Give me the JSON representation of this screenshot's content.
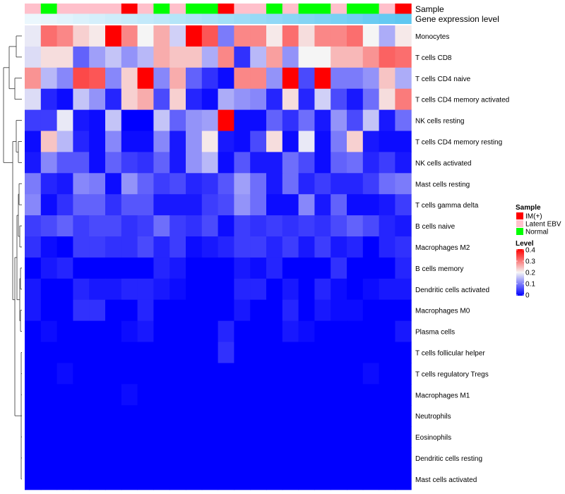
{
  "chart_data": {
    "type": "heatmap",
    "annotation_tracks": [
      "Sample",
      "Gene expression level"
    ],
    "sample_track": [
      "Latent EBV",
      "Normal",
      "Latent EBV",
      "Latent EBV",
      "Latent EBV",
      "Latent EBV",
      "IM(+)",
      "Latent EBV",
      "Normal",
      "Latent EBV",
      "Normal",
      "Normal",
      "IM(+)",
      "Latent EBV",
      "Latent EBV",
      "Normal",
      "Latent EBV",
      "Normal",
      "Normal",
      "Latent EBV",
      "Normal",
      "Normal",
      "Latent EBV",
      "IM(+)"
    ],
    "expression_track": [
      0.02,
      0.05,
      0.09,
      0.13,
      0.17,
      0.21,
      0.25,
      0.29,
      0.33,
      0.38,
      0.42,
      0.46,
      0.5,
      0.54,
      0.58,
      0.62,
      0.67,
      0.71,
      0.75,
      0.79,
      0.83,
      0.88,
      0.92,
      0.96
    ],
    "expression_track_colors": [
      "#eef8fd",
      "#58c5f1"
    ],
    "rows": [
      "Monocytes",
      "T cells CD8",
      "T cells CD4 naive",
      "T cells CD4 memory activated",
      "NK cells resting",
      "T cells CD4 memory resting",
      "NK cells activated",
      "Mast cells resting",
      "T cells gamma delta",
      "B cells naive",
      "Macrophages M2",
      "B cells memory",
      "Dendritic cells activated",
      "Macrophages M0",
      "Plasma cells",
      "T cells follicular helper",
      "T cells regulatory  Tregs",
      "Macrophages M1",
      "Neutrophils",
      "Eosinophils",
      "Dendritic cells resting",
      "Mast cells activated"
    ],
    "values": [
      [
        0.19,
        0.31,
        0.29,
        0.23,
        0.21,
        0.4,
        0.29,
        0.2,
        0.26,
        0.17,
        0.4,
        0.33,
        0.1,
        0.29,
        0.29,
        0.21,
        0.31,
        0.22,
        0.29,
        0.29,
        0.31,
        0.2,
        0.14,
        0.21
      ],
      [
        0.18,
        0.22,
        0.22,
        0.08,
        0.13,
        0.16,
        0.12,
        0.15,
        0.26,
        0.24,
        0.24,
        0.14,
        0.29,
        0.04,
        0.15,
        0.27,
        0.12,
        0.2,
        0.2,
        0.25,
        0.25,
        0.28,
        0.32,
        0.31
      ],
      [
        0.28,
        0.15,
        0.11,
        0.34,
        0.33,
        0.11,
        0.23,
        0.4,
        0.11,
        0.26,
        0.08,
        0.04,
        0.01,
        0.29,
        0.29,
        0.12,
        0.4,
        0.06,
        0.4,
        0.1,
        0.1,
        0.12,
        0.24,
        0.14
      ],
      [
        0.18,
        0.03,
        0.01,
        0.16,
        0.12,
        0.03,
        0.23,
        0.26,
        0.06,
        0.23,
        0.03,
        0.01,
        0.14,
        0.12,
        0.11,
        0.03,
        0.22,
        0.03,
        0.17,
        0.06,
        0.02,
        0.09,
        0.22,
        0.3
      ],
      [
        0.05,
        0.05,
        0.19,
        0.02,
        0.01,
        0.16,
        0.0,
        0.0,
        0.16,
        0.08,
        0.12,
        0.13,
        0.4,
        0.01,
        0.01,
        0.08,
        0.04,
        0.09,
        0.02,
        0.12,
        0.06,
        0.16,
        0.02,
        0.09
      ],
      [
        0.01,
        0.24,
        0.15,
        0.03,
        0.01,
        0.11,
        0.01,
        0.01,
        0.11,
        0.02,
        0.12,
        0.21,
        0.02,
        0.01,
        0.06,
        0.22,
        0.01,
        0.19,
        0.01,
        0.1,
        0.23,
        0.02,
        0.01,
        0.01
      ],
      [
        0.02,
        0.11,
        0.07,
        0.07,
        0.01,
        0.08,
        0.05,
        0.04,
        0.08,
        0.02,
        0.12,
        0.15,
        0.01,
        0.07,
        0.02,
        0.02,
        0.09,
        0.06,
        0.01,
        0.08,
        0.09,
        0.03,
        0.05,
        0.02
      ],
      [
        0.1,
        0.03,
        0.02,
        0.11,
        0.1,
        0.01,
        0.12,
        0.08,
        0.05,
        0.06,
        0.03,
        0.04,
        0.07,
        0.13,
        0.09,
        0.02,
        0.09,
        0.03,
        0.05,
        0.03,
        0.03,
        0.05,
        0.09,
        0.1
      ],
      [
        0.11,
        0.01,
        0.04,
        0.08,
        0.08,
        0.04,
        0.07,
        0.07,
        0.02,
        0.02,
        0.02,
        0.05,
        0.06,
        0.12,
        0.09,
        0.01,
        0.01,
        0.11,
        0.02,
        0.08,
        0.01,
        0.01,
        0.02,
        0.05
      ],
      [
        0.05,
        0.06,
        0.08,
        0.05,
        0.06,
        0.06,
        0.04,
        0.05,
        0.09,
        0.05,
        0.04,
        0.06,
        0.01,
        0.05,
        0.04,
        0.05,
        0.04,
        0.05,
        0.04,
        0.06,
        0.08,
        0.06,
        0.03,
        0.02
      ],
      [
        0.04,
        0.01,
        0.0,
        0.05,
        0.05,
        0.04,
        0.04,
        0.06,
        0.03,
        0.05,
        0.01,
        0.02,
        0.03,
        0.05,
        0.05,
        0.03,
        0.05,
        0.02,
        0.05,
        0.02,
        0.03,
        0.0,
        0.03,
        0.04
      ],
      [
        0.0,
        0.02,
        0.03,
        0.0,
        0.0,
        0.0,
        0.0,
        0.0,
        0.03,
        0.02,
        0.0,
        0.0,
        0.0,
        0.02,
        0.01,
        0.03,
        0.0,
        0.0,
        0.0,
        0.04,
        0.0,
        0.0,
        0.0,
        0.03
      ],
      [
        0.02,
        0.0,
        0.0,
        0.03,
        0.02,
        0.02,
        0.03,
        0.03,
        0.02,
        0.01,
        0.0,
        0.0,
        0.0,
        0.03,
        0.03,
        0.0,
        0.02,
        0.0,
        0.03,
        0.01,
        0.0,
        0.01,
        0.02,
        0.02
      ],
      [
        0.02,
        0.0,
        0.0,
        0.04,
        0.04,
        0.0,
        0.0,
        0.03,
        0.0,
        0.0,
        0.0,
        0.0,
        0.0,
        0.02,
        0.0,
        0.0,
        0.03,
        0.0,
        0.02,
        0.01,
        0.01,
        0.0,
        0.0,
        0.0
      ],
      [
        0.0,
        0.01,
        0.0,
        0.0,
        0.0,
        0.0,
        0.01,
        0.02,
        0.0,
        0.0,
        0.0,
        0.0,
        0.03,
        0.0,
        0.0,
        0.0,
        0.02,
        0.01,
        0.0,
        0.0,
        0.0,
        0.0,
        0.0,
        0.02
      ],
      [
        0.0,
        0.0,
        0.0,
        0.0,
        0.0,
        0.0,
        0.0,
        0.0,
        0.0,
        0.0,
        0.0,
        0.0,
        0.04,
        0.0,
        0.0,
        0.0,
        0.0,
        0.0,
        0.0,
        0.0,
        0.0,
        0.0,
        0.0,
        0.0
      ],
      [
        0.0,
        0.0,
        0.01,
        0.0,
        0.0,
        0.0,
        0.0,
        0.0,
        0.0,
        0.0,
        0.0,
        0.0,
        0.0,
        0.0,
        0.0,
        0.0,
        0.0,
        0.0,
        0.0,
        0.0,
        0.0,
        0.01,
        0.0,
        0.0
      ],
      [
        0.0,
        0.0,
        0.0,
        0.0,
        0.0,
        0.0,
        0.01,
        0.0,
        0.0,
        0.0,
        0.0,
        0.0,
        0.0,
        0.0,
        0.0,
        0.0,
        0.0,
        0.0,
        0.0,
        0.0,
        0.0,
        0.0,
        0.0,
        0.0
      ],
      [
        0.0,
        0.0,
        0.0,
        0.0,
        0.0,
        0.0,
        0.0,
        0.0,
        0.0,
        0.0,
        0.0,
        0.0,
        0.0,
        0.0,
        0.0,
        0.0,
        0.0,
        0.0,
        0.0,
        0.0,
        0.0,
        0.0,
        0.0,
        0.0
      ],
      [
        0.0,
        0.0,
        0.0,
        0.0,
        0.0,
        0.0,
        0.0,
        0.0,
        0.0,
        0.0,
        0.0,
        0.0,
        0.0,
        0.0,
        0.0,
        0.0,
        0.0,
        0.0,
        0.0,
        0.0,
        0.0,
        0.0,
        0.0,
        0.0
      ],
      [
        0.0,
        0.0,
        0.0,
        0.0,
        0.0,
        0.0,
        0.0,
        0.0,
        0.0,
        0.0,
        0.0,
        0.0,
        0.0,
        0.0,
        0.0,
        0.0,
        0.0,
        0.0,
        0.0,
        0.0,
        0.0,
        0.0,
        0.0,
        0.0
      ],
      [
        0.0,
        0.0,
        0.0,
        0.0,
        0.0,
        0.0,
        0.0,
        0.0,
        0.0,
        0.0,
        0.0,
        0.0,
        0.0,
        0.0,
        0.0,
        0.0,
        0.0,
        0.0,
        0.0,
        0.0,
        0.0,
        0.0,
        0.0,
        0.0
      ]
    ],
    "color_scale": {
      "min": 0,
      "mid": 0.2,
      "max": 0.4,
      "colors": [
        "#0000ff",
        "#f5f5f5",
        "#ff0000"
      ]
    },
    "legend": {
      "sample_title": "Sample",
      "sample_entries": [
        {
          "label": "IM(+)",
          "color": "#ff0000"
        },
        {
          "label": "Latent EBV",
          "color": "#ffc0cb"
        },
        {
          "label": "Normal",
          "color": "#00ff00"
        }
      ],
      "level_title": "Level",
      "level_ticks": [
        "0.4",
        "0.3",
        "0.2",
        "0.1",
        "0"
      ],
      "placement": "right"
    },
    "row_dendrogram": true
  }
}
